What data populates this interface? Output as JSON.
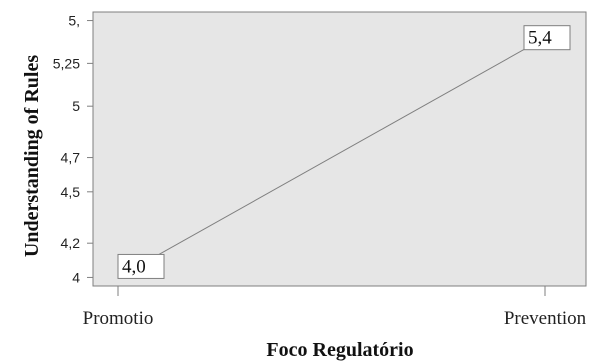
{
  "chart_data": {
    "type": "line",
    "xlabel": "Foco Regulatório",
    "ylabel": "Understanding of Rules",
    "categories": [
      "Promotio",
      "Prevention"
    ],
    "series": [
      {
        "values": [
          4.0,
          5.4
        ]
      }
    ],
    "data_labels": [
      "4,0",
      "5,4"
    ],
    "y_ticks": [
      {
        "value": 4.0,
        "label": "4"
      },
      {
        "value": 4.2,
        "label": "4,2"
      },
      {
        "value": 4.5,
        "label": "4,5"
      },
      {
        "value": 4.7,
        "label": "4,7"
      },
      {
        "value": 5.0,
        "label": "5"
      },
      {
        "value": 5.25,
        "label": "5,25"
      },
      {
        "value": 5.5,
        "label": "5,"
      }
    ],
    "ylim": [
      3.95,
      5.55
    ],
    "grid": false,
    "plot_background": "#e6e6e6",
    "line_color": "#7f7f7f"
  }
}
